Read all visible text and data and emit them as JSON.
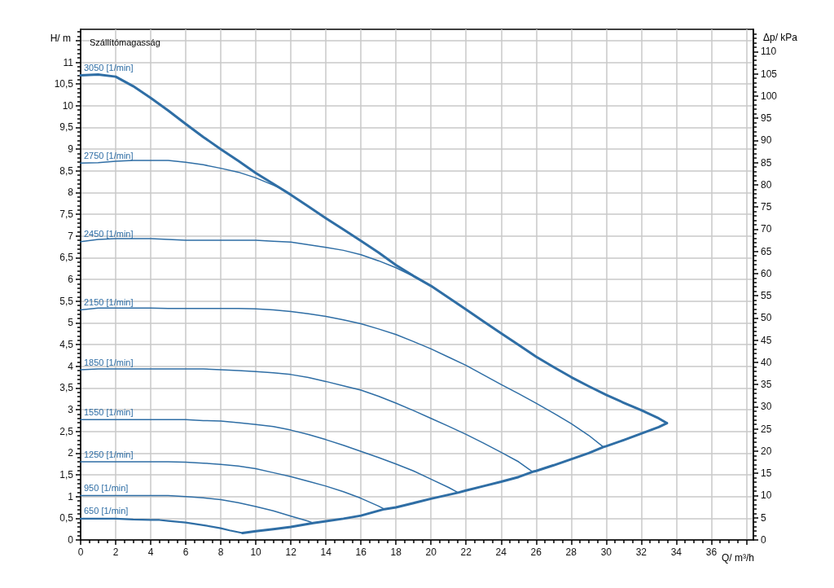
{
  "chart_data": {
    "type": "line",
    "title": "Szállítómagasság",
    "xlabel": "Q/ m³/h",
    "ylabel": "H/ m",
    "y2label": "Δp/ kPa",
    "xlim": [
      0,
      38.4
    ],
    "xticks": [
      0,
      2,
      4,
      6,
      8,
      10,
      12,
      14,
      16,
      18,
      20,
      22,
      24,
      26,
      28,
      30,
      32,
      34,
      36,
      {
        "value": 38,
        "label": null
      }
    ],
    "ylim": [
      0,
      11.76
    ],
    "yticks": [
      0,
      {
        "value": 0.5,
        "label": "0,5"
      },
      1,
      {
        "value": 1.5,
        "label": "1,5"
      },
      2,
      {
        "value": 2.5,
        "label": "2,5"
      },
      3,
      {
        "value": 3.5,
        "label": "3,5"
      },
      4,
      {
        "value": 4.5,
        "label": "4,5"
      },
      5,
      {
        "value": 5.5,
        "label": "5,5"
      },
      6,
      {
        "value": 6.5,
        "label": "6,5"
      },
      7,
      {
        "value": 7.5,
        "label": "7,5"
      },
      8,
      {
        "value": 8.5,
        "label": "8,5"
      },
      9,
      {
        "value": 9.5,
        "label": "9,5"
      },
      10,
      {
        "value": 10.5,
        "label": "10,5"
      },
      11,
      {
        "value": 11.5,
        "label": null
      }
    ],
    "y2lim": [
      0,
      115
    ],
    "y2ticks": [
      0,
      5,
      10,
      15,
      20,
      25,
      30,
      35,
      40,
      45,
      50,
      55,
      60,
      65,
      70,
      75,
      80,
      85,
      90,
      95,
      100,
      105,
      110
    ],
    "grid": true,
    "marker": "none",
    "line_style": "solid",
    "series": [
      {
        "name": "3050 [1/min]",
        "color": "#2f6ea5",
        "x": [
          0,
          1,
          2,
          3,
          4,
          5,
          6,
          7,
          8,
          9,
          10,
          11,
          12,
          13,
          14,
          15,
          16,
          17,
          18,
          19,
          20,
          21,
          22,
          23,
          24,
          25,
          26,
          27,
          28,
          29,
          30,
          31,
          32,
          33,
          33.46
        ],
        "values": [
          10.7,
          10.72,
          10.67,
          10.45,
          10.18,
          9.89,
          9.58,
          9.28,
          9.0,
          8.73,
          8.45,
          8.2,
          7.95,
          7.68,
          7.41,
          7.15,
          6.89,
          6.62,
          6.33,
          6.08,
          5.85,
          5.58,
          5.31,
          5.03,
          4.76,
          4.49,
          4.22,
          3.98,
          3.75,
          3.54,
          3.34,
          3.16,
          2.99,
          2.8,
          2.69
        ]
      },
      {
        "name": "2750 [1/min]",
        "color": "#2f6ea5",
        "x": [
          0,
          1,
          2,
          3,
          4,
          5,
          6,
          7,
          8,
          9,
          10,
          11,
          11.5
        ],
        "values": [
          8.68,
          8.69,
          8.72,
          8.74,
          8.74,
          8.74,
          8.7,
          8.64,
          8.56,
          8.47,
          8.34,
          8.17,
          8.08
        ]
      },
      {
        "name": "2450 [1/min]",
        "color": "#2f6ea5",
        "x": [
          0,
          1,
          2,
          3,
          4,
          5,
          6,
          7,
          8,
          9,
          10,
          11,
          12,
          13,
          14,
          15,
          16,
          17,
          18,
          19,
          20
        ],
        "values": [
          6.87,
          6.92,
          6.94,
          6.94,
          6.94,
          6.92,
          6.9,
          6.9,
          6.9,
          6.9,
          6.9,
          6.88,
          6.86,
          6.8,
          6.74,
          6.67,
          6.57,
          6.43,
          6.27,
          6.07,
          5.85
        ]
      },
      {
        "name": "2150 [1/min]",
        "color": "#2f6ea5",
        "x": [
          0,
          1,
          2,
          3,
          4,
          5,
          6,
          7,
          8,
          9,
          10,
          11,
          12,
          13,
          14,
          15,
          16,
          17,
          18,
          19,
          20,
          21,
          22,
          23,
          24,
          25,
          26,
          27,
          28,
          29,
          29.84
        ],
        "values": [
          5.3,
          5.34,
          5.34,
          5.34,
          5.34,
          5.33,
          5.33,
          5.33,
          5.33,
          5.33,
          5.32,
          5.3,
          5.26,
          5.21,
          5.15,
          5.07,
          4.98,
          4.86,
          4.73,
          4.57,
          4.4,
          4.21,
          4.02,
          3.8,
          3.58,
          3.37,
          3.15,
          2.92,
          2.68,
          2.41,
          2.14
        ]
      },
      {
        "name": "1850 [1/min]",
        "color": "#2f6ea5",
        "x": [
          0,
          1,
          2,
          3,
          4,
          5,
          6,
          7,
          8,
          9,
          10,
          11,
          12,
          13,
          14,
          15,
          16,
          17,
          18,
          19,
          20,
          21,
          22,
          23,
          24,
          25,
          25.8
        ],
        "values": [
          3.92,
          3.94,
          3.94,
          3.94,
          3.94,
          3.94,
          3.94,
          3.94,
          3.92,
          3.9,
          3.88,
          3.85,
          3.81,
          3.74,
          3.65,
          3.55,
          3.45,
          3.31,
          3.15,
          2.98,
          2.8,
          2.62,
          2.43,
          2.23,
          2.02,
          1.8,
          1.57
        ]
      },
      {
        "name": "1550 [1/min]",
        "color": "#2f6ea5",
        "x": [
          0,
          1,
          2,
          3,
          4,
          5,
          6,
          7,
          8,
          9,
          10,
          11,
          12,
          13,
          14,
          15,
          16,
          17,
          18,
          19,
          20,
          21,
          21.55
        ],
        "values": [
          2.77,
          2.77,
          2.77,
          2.77,
          2.77,
          2.77,
          2.77,
          2.75,
          2.74,
          2.7,
          2.66,
          2.61,
          2.53,
          2.43,
          2.31,
          2.18,
          2.04,
          1.9,
          1.75,
          1.59,
          1.4,
          1.21,
          1.09
        ]
      },
      {
        "name": "1250 [1/min]",
        "color": "#2f6ea5",
        "x": [
          0,
          1,
          2,
          3,
          4,
          5,
          6,
          7,
          8,
          9,
          10,
          11,
          12,
          13,
          14,
          15,
          16,
          17,
          17.34
        ],
        "values": [
          1.8,
          1.8,
          1.8,
          1.8,
          1.8,
          1.8,
          1.79,
          1.77,
          1.74,
          1.7,
          1.64,
          1.55,
          1.46,
          1.35,
          1.24,
          1.11,
          0.96,
          0.78,
          0.71
        ]
      },
      {
        "name": "950 [1/min]",
        "color": "#2f6ea5",
        "x": [
          0,
          1,
          2,
          3,
          4,
          5,
          6,
          7,
          8,
          9,
          10,
          11,
          12,
          13,
          13.27
        ],
        "values": [
          1.02,
          1.02,
          1.02,
          1.02,
          1.02,
          1.02,
          1.0,
          0.97,
          0.93,
          0.86,
          0.77,
          0.67,
          0.55,
          0.43,
          0.39
        ]
      },
      {
        "name": "650 [1/min]",
        "color": "#2f6ea5",
        "x": [
          0,
          1,
          2,
          3,
          4,
          4.5,
          5,
          6,
          7,
          8,
          8.5,
          9.24
        ],
        "values": [
          0.49,
          0.49,
          0.49,
          0.47,
          0.46,
          0.46,
          0.44,
          0.4,
          0.34,
          0.27,
          0.22,
          0.16
        ]
      },
      {
        "color": "#2f6ea5",
        "x": [
          9.24,
          10,
          11,
          12,
          13.27,
          14,
          15,
          16,
          17.34,
          18,
          19,
          20,
          21.55,
          22,
          23,
          24,
          25,
          25.8,
          26,
          27,
          28,
          29,
          29.84,
          30,
          31,
          32,
          33,
          33.46
        ],
        "values": [
          0.16,
          0.2,
          0.25,
          0.3,
          0.39,
          0.43,
          0.49,
          0.56,
          0.71,
          0.75,
          0.85,
          0.95,
          1.09,
          1.14,
          1.24,
          1.34,
          1.45,
          1.57,
          1.59,
          1.72,
          1.86,
          2.0,
          2.14,
          2.16,
          2.3,
          2.45,
          2.6,
          2.69
        ]
      }
    ]
  }
}
